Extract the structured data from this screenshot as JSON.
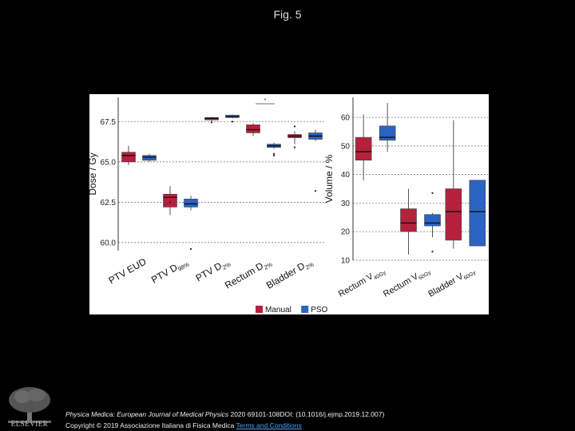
{
  "page": {
    "title": "Fig. 5",
    "citation_journal": "Physica Medica: European Journal of Medical Physics",
    "citation_rest": " 2020 69101-108DOI: (10.1016/j.ejmp.2019.12.007)",
    "copyright": "Copyright © 2019 Associazione Italiana di Fisica Medica",
    "terms_link": "Terms and Conditions",
    "logo_text": "ELSEVIER"
  },
  "chart_data": [
    {
      "type": "box",
      "ylabel": "Dose / Gy",
      "ylim": [
        59.5,
        69.0
      ],
      "yticks": [
        60.0,
        62.5,
        65.0,
        67.5
      ],
      "ytick_labels": [
        "60.0",
        "62.5",
        "65.0",
        "67.5"
      ],
      "grid": true,
      "significance_marker": "*",
      "categories": [
        "PTV EUD",
        "PTV D98%",
        "PTV D2%",
        "Rectum D2%",
        "Bladder D2%"
      ],
      "category_labels": [
        {
          "main": "PTV EUD",
          "sub": "",
          "post": ""
        },
        {
          "main": "PTV D",
          "sub": "98%",
          "post": ""
        },
        {
          "main": "PTV D",
          "sub": "2%",
          "post": ""
        },
        {
          "main": "Rectum D",
          "sub": "2%",
          "post": ""
        },
        {
          "main": "Bladder D",
          "sub": "2%",
          "post": ""
        }
      ],
      "series": [
        {
          "name": "Manual",
          "color": "#b5213c",
          "boxes": [
            {
              "whislo": 64.8,
              "q1": 65.0,
              "med": 65.4,
              "q3": 65.6,
              "whishi": 66.0,
              "outliers": []
            },
            {
              "whislo": 61.7,
              "q1": 62.2,
              "med": 62.8,
              "q3": 63.0,
              "whishi": 63.5,
              "outliers": [
                62.5
              ]
            },
            {
              "whislo": 67.5,
              "q1": 67.6,
              "med": 67.7,
              "q3": 67.75,
              "whishi": 67.8,
              "outliers": [
                67.45
              ]
            },
            {
              "whislo": 66.6,
              "q1": 66.8,
              "med": 67.0,
              "q3": 67.3,
              "whishi": 67.4,
              "outliers": []
            },
            {
              "whislo": 66.1,
              "q1": 66.5,
              "med": 66.6,
              "q3": 66.7,
              "whishi": 66.9,
              "outliers": [
                65.9,
                67.2
              ]
            }
          ]
        },
        {
          "name": "PSO",
          "color": "#2b63c2",
          "boxes": [
            {
              "whislo": 65.0,
              "q1": 65.1,
              "med": 65.3,
              "q3": 65.4,
              "whishi": 65.5,
              "outliers": []
            },
            {
              "whislo": 62.0,
              "q1": 62.2,
              "med": 62.4,
              "q3": 62.7,
              "whishi": 62.9,
              "outliers": [
                59.6
              ]
            },
            {
              "whislo": 67.7,
              "q1": 67.75,
              "med": 67.8,
              "q3": 67.9,
              "whishi": 67.95,
              "outliers": [
                67.5
              ]
            },
            {
              "whislo": 65.8,
              "q1": 65.9,
              "med": 66.0,
              "q3": 66.1,
              "whishi": 66.2,
              "outliers": [
                65.4,
                65.5
              ]
            },
            {
              "whislo": 66.3,
              "q1": 66.4,
              "med": 66.6,
              "q3": 66.8,
              "whishi": 67.0,
              "outliers": [
                63.2
              ]
            }
          ]
        }
      ]
    },
    {
      "type": "box",
      "ylabel": "Volume / %",
      "ylim": [
        10,
        67
      ],
      "yticks": [
        10,
        20,
        30,
        40,
        50,
        60
      ],
      "ytick_labels": [
        "10",
        "20",
        "30",
        "40",
        "50",
        "60"
      ],
      "grid": true,
      "categories": [
        "Rectum V40Gy",
        "Rectum V60Gy",
        "Bladder V60Gy"
      ],
      "category_labels": [
        {
          "main": "Rectum V",
          "sub": "40Gy",
          "post": ""
        },
        {
          "main": "Rectum V",
          "sub": "60Gy",
          "post": ""
        },
        {
          "main": "Bladder V",
          "sub": "60Gy",
          "post": ""
        }
      ],
      "series": [
        {
          "name": "Manual",
          "color": "#b5213c",
          "boxes": [
            {
              "whislo": 38,
              "q1": 45,
              "med": 48,
              "q3": 53,
              "whishi": 61,
              "outliers": []
            },
            {
              "whislo": 12,
              "q1": 20,
              "med": 23,
              "q3": 28,
              "whishi": 35,
              "outliers": []
            },
            {
              "whislo": 14,
              "q1": 17,
              "med": 27,
              "q3": 35,
              "whishi": 59,
              "outliers": []
            }
          ]
        },
        {
          "name": "PSO",
          "color": "#2b63c2",
          "boxes": [
            {
              "whislo": 48,
              "q1": 52,
              "med": 53,
              "q3": 57,
              "whishi": 65,
              "outliers": []
            },
            {
              "whislo": 18,
              "q1": 22,
              "med": 23,
              "q3": 26,
              "whishi": 26.5,
              "outliers": [
                13,
                33.5
              ]
            },
            {
              "whislo": 15,
              "q1": 15,
              "med": 27,
              "q3": 38,
              "whishi": 38,
              "outliers": []
            }
          ]
        }
      ]
    }
  ],
  "legend": {
    "items": [
      {
        "label": "Manual",
        "color": "#b5213c"
      },
      {
        "label": "PSO",
        "color": "#2b63c2"
      }
    ]
  }
}
